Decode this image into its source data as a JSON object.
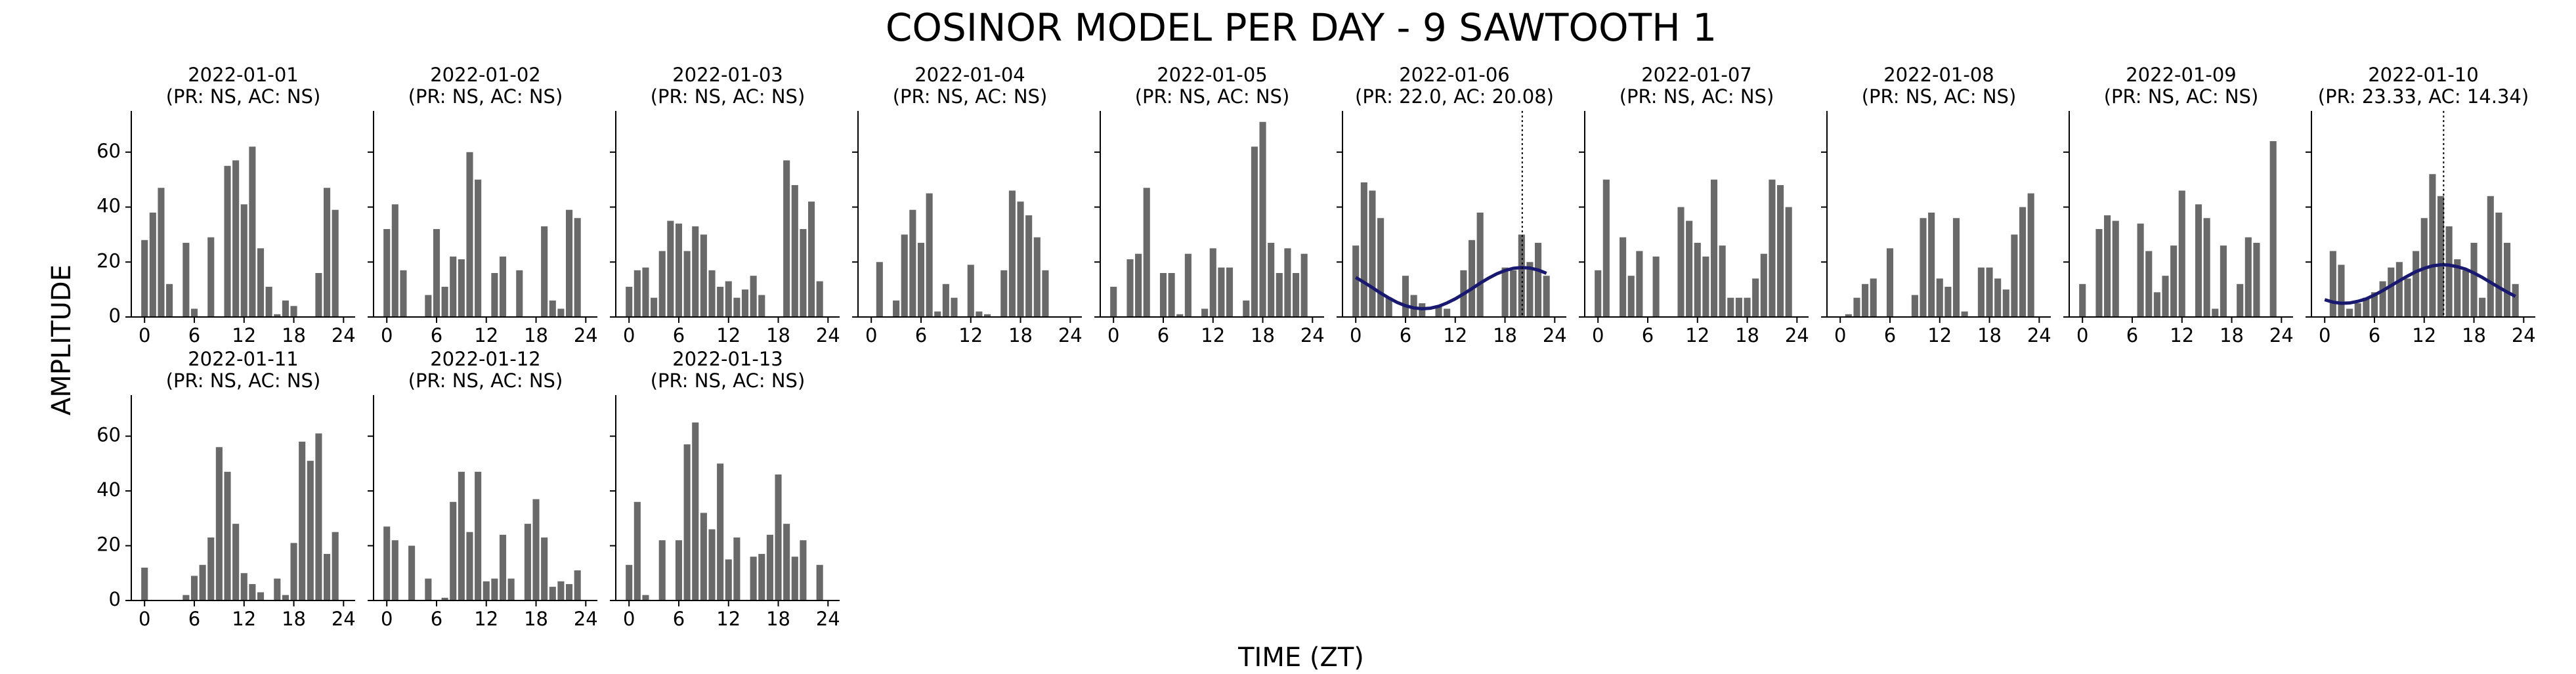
{
  "title": "COSINOR MODEL PER DAY - 9 SAWTOOTH 1",
  "xlabel": "TIME (ZT)",
  "ylabel": "AMPLITUDE",
  "chart_data": [
    {
      "type": "bar",
      "title": "2022-01-01",
      "subtitle": "(PR: NS, AC: NS)",
      "x": [
        0,
        1,
        2,
        3,
        4,
        5,
        6,
        7,
        8,
        9,
        10,
        11,
        12,
        13,
        14,
        15,
        16,
        17,
        18,
        19,
        20,
        21,
        22,
        23
      ],
      "values": [
        28,
        38,
        47,
        12,
        0,
        27,
        3,
        0,
        29,
        0,
        55,
        57,
        41,
        62,
        25,
        11,
        1,
        6,
        4,
        0,
        0,
        16,
        47,
        39
      ],
      "color": "#696969",
      "xlim": [
        -1.6,
        25.4
      ],
      "ylim": [
        0,
        75
      ],
      "xticks": [
        0,
        6,
        12,
        18,
        24
      ],
      "yticks": [
        0,
        20,
        40,
        60
      ]
    },
    {
      "type": "bar",
      "title": "2022-01-02",
      "subtitle": "(PR: NS, AC: NS)",
      "x": [
        0,
        1,
        2,
        3,
        4,
        5,
        6,
        7,
        8,
        9,
        10,
        11,
        12,
        13,
        14,
        15,
        16,
        17,
        18,
        19,
        20,
        21,
        22,
        23
      ],
      "values": [
        32,
        41,
        17,
        0,
        0,
        8,
        32,
        11,
        22,
        21,
        60,
        50,
        0,
        16,
        22,
        0,
        17,
        0,
        0,
        33,
        6,
        3,
        39,
        36
      ],
      "color": "#696969",
      "xlim": [
        -1.6,
        25.4
      ],
      "ylim": [
        0,
        75
      ],
      "xticks": [
        0,
        6,
        12,
        18,
        24
      ],
      "yticks": [
        0,
        20,
        40,
        60
      ]
    },
    {
      "type": "bar",
      "title": "2022-01-03",
      "subtitle": "(PR: NS, AC: NS)",
      "x": [
        0,
        1,
        2,
        3,
        4,
        5,
        6,
        7,
        8,
        9,
        10,
        11,
        12,
        13,
        14,
        15,
        16,
        17,
        18,
        19,
        20,
        21,
        22,
        23
      ],
      "values": [
        11,
        17,
        18,
        7,
        24,
        35,
        34,
        24,
        33,
        30,
        17,
        11,
        13,
        7,
        10,
        15,
        8,
        0,
        0,
        57,
        48,
        32,
        42,
        13
      ],
      "color": "#696969",
      "xlim": [
        -1.6,
        25.4
      ],
      "ylim": [
        0,
        75
      ],
      "xticks": [
        0,
        6,
        12,
        18,
        24
      ],
      "yticks": [
        0,
        20,
        40,
        60
      ]
    },
    {
      "type": "bar",
      "title": "2022-01-04",
      "subtitle": "(PR: NS, AC: NS)",
      "x": [
        0,
        1,
        2,
        3,
        4,
        5,
        6,
        7,
        8,
        9,
        10,
        11,
        12,
        13,
        14,
        15,
        16,
        17,
        18,
        19,
        20,
        21,
        22,
        23
      ],
      "values": [
        0,
        20,
        0,
        6,
        30,
        39,
        27,
        45,
        2,
        12,
        7,
        0,
        19,
        2,
        1,
        0,
        17,
        46,
        42,
        37,
        29,
        17,
        0,
        0
      ],
      "color": "#696969",
      "xlim": [
        -1.6,
        25.4
      ],
      "ylim": [
        0,
        75
      ],
      "xticks": [
        0,
        6,
        12,
        18,
        24
      ],
      "yticks": [
        0,
        20,
        40,
        60
      ]
    },
    {
      "type": "bar",
      "title": "2022-01-05",
      "subtitle": "(PR: NS, AC: NS)",
      "x": [
        0,
        1,
        2,
        3,
        4,
        5,
        6,
        7,
        8,
        9,
        10,
        11,
        12,
        13,
        14,
        15,
        16,
        17,
        18,
        19,
        20,
        21,
        22,
        23
      ],
      "values": [
        11,
        0,
        21,
        23,
        47,
        0,
        16,
        16,
        1,
        23,
        0,
        3,
        25,
        18,
        18,
        0,
        6,
        62,
        71,
        27,
        16,
        25,
        16,
        23
      ],
      "color": "#696969",
      "xlim": [
        -1.6,
        25.4
      ],
      "ylim": [
        0,
        75
      ],
      "xticks": [
        0,
        6,
        12,
        18,
        24
      ],
      "yticks": [
        0,
        20,
        40,
        60
      ]
    },
    {
      "type": "bar",
      "title": "2022-01-06",
      "subtitle": "(PR: 22.0, AC: 20.08)",
      "x": [
        0,
        1,
        2,
        3,
        4,
        5,
        6,
        7,
        8,
        9,
        10,
        11,
        12,
        13,
        14,
        15,
        16,
        17,
        18,
        19,
        20,
        21,
        22,
        23
      ],
      "values": [
        26,
        49,
        46,
        36,
        7,
        0,
        15,
        8,
        5,
        0,
        4,
        3,
        0,
        17,
        28,
        38,
        0,
        0,
        18,
        17,
        30,
        20,
        27,
        15
      ],
      "color": "#696969",
      "xlim": [
        -1.6,
        25.4
      ],
      "ylim": [
        0,
        75
      ],
      "xticks": [
        0,
        6,
        12,
        18,
        24
      ],
      "yticks": [
        0,
        20,
        40,
        60
      ],
      "acrophase": 20.08,
      "fit": {
        "color": "#191970",
        "x": [
          0,
          1,
          2,
          3,
          4,
          5,
          6,
          7,
          8,
          9,
          10,
          11,
          12,
          13,
          14,
          15,
          16,
          17,
          18,
          19,
          20,
          21,
          22,
          23
        ],
        "values": [
          14.4,
          12.6,
          10.7,
          8.7,
          6.9,
          5.3,
          4.1,
          3.3,
          3.0,
          3.2,
          3.9,
          5.1,
          6.6,
          8.4,
          10.3,
          12.3,
          14.1,
          15.7,
          16.9,
          17.7,
          18.0,
          17.8,
          17.1,
          15.9
        ]
      }
    },
    {
      "type": "bar",
      "title": "2022-01-07",
      "subtitle": "(PR: NS, AC: NS)",
      "x": [
        0,
        1,
        2,
        3,
        4,
        5,
        6,
        7,
        8,
        9,
        10,
        11,
        12,
        13,
        14,
        15,
        16,
        17,
        18,
        19,
        20,
        21,
        22,
        23
      ],
      "values": [
        17,
        50,
        0,
        29,
        15,
        24,
        0,
        22,
        0,
        0,
        40,
        35,
        27,
        22,
        50,
        26,
        7,
        7,
        7,
        14,
        23,
        50,
        48,
        40
      ],
      "color": "#696969",
      "xlim": [
        -1.6,
        25.4
      ],
      "ylim": [
        0,
        75
      ],
      "xticks": [
        0,
        6,
        12,
        18,
        24
      ],
      "yticks": [
        0,
        20,
        40,
        60
      ]
    },
    {
      "type": "bar",
      "title": "2022-01-08",
      "subtitle": "(PR: NS, AC: NS)",
      "x": [
        0,
        1,
        2,
        3,
        4,
        5,
        6,
        7,
        8,
        9,
        10,
        11,
        12,
        13,
        14,
        15,
        16,
        17,
        18,
        19,
        20,
        21,
        22,
        23
      ],
      "values": [
        0,
        1,
        7,
        12,
        14,
        0,
        25,
        0,
        0,
        8,
        36,
        38,
        14,
        11,
        36,
        2,
        0,
        18,
        18,
        14,
        10,
        30,
        40,
        45
      ],
      "color": "#696969",
      "xlim": [
        -1.6,
        25.4
      ],
      "ylim": [
        0,
        75
      ],
      "xticks": [
        0,
        6,
        12,
        18,
        24
      ],
      "yticks": [
        0,
        20,
        40,
        60
      ]
    },
    {
      "type": "bar",
      "title": "2022-01-09",
      "subtitle": "(PR: NS, AC: NS)",
      "x": [
        0,
        1,
        2,
        3,
        4,
        5,
        6,
        7,
        8,
        9,
        10,
        11,
        12,
        13,
        14,
        15,
        16,
        17,
        18,
        19,
        20,
        21,
        22,
        23
      ],
      "values": [
        12,
        0,
        32,
        37,
        35,
        0,
        0,
        34,
        24,
        9,
        15,
        26,
        46,
        0,
        41,
        36,
        3,
        26,
        0,
        12,
        29,
        27,
        0,
        64
      ],
      "color": "#696969",
      "xlim": [
        -1.6,
        25.4
      ],
      "ylim": [
        0,
        75
      ],
      "xticks": [
        0,
        6,
        12,
        18,
        24
      ],
      "yticks": [
        0,
        20,
        40,
        60
      ]
    },
    {
      "type": "bar",
      "title": "2022-01-10",
      "subtitle": "(PR: 23.33, AC: 14.34)",
      "x": [
        0,
        1,
        2,
        3,
        4,
        5,
        6,
        7,
        8,
        9,
        10,
        11,
        12,
        13,
        14,
        15,
        16,
        17,
        18,
        19,
        20,
        21,
        22,
        23
      ],
      "values": [
        0,
        24,
        19,
        3,
        5,
        7,
        9,
        13,
        18,
        20,
        14,
        24,
        36,
        52,
        44,
        33,
        21,
        17,
        27,
        7,
        44,
        38,
        27,
        12
      ],
      "color": "#696969",
      "xlim": [
        -1.6,
        25.4
      ],
      "ylim": [
        0,
        75
      ],
      "xticks": [
        0,
        6,
        12,
        18,
        24
      ],
      "yticks": [
        0,
        20,
        40,
        60
      ],
      "acrophase": 14.34,
      "fit": {
        "color": "#191970",
        "x": [
          0,
          1,
          2,
          3,
          4,
          5,
          6,
          7,
          8,
          9,
          10,
          11,
          12,
          13,
          14,
          15,
          16,
          17,
          18,
          19,
          20,
          21,
          22,
          23
        ],
        "values": [
          6.3,
          5.4,
          5.0,
          5.1,
          5.7,
          6.6,
          8.0,
          9.6,
          11.4,
          13.2,
          14.9,
          16.5,
          17.7,
          18.6,
          19.0,
          18.9,
          18.3,
          17.4,
          16.0,
          14.4,
          12.6,
          10.8,
          9.1,
          7.5
        ]
      }
    },
    {
      "type": "bar",
      "title": "2022-01-11",
      "subtitle": "(PR: NS, AC: NS)",
      "x": [
        0,
        1,
        2,
        3,
        4,
        5,
        6,
        7,
        8,
        9,
        10,
        11,
        12,
        13,
        14,
        15,
        16,
        17,
        18,
        19,
        20,
        21,
        22,
        23
      ],
      "values": [
        12,
        0,
        0,
        0,
        0,
        2,
        9,
        13,
        23,
        56,
        47,
        28,
        10,
        6,
        3,
        0,
        8,
        2,
        21,
        58,
        51,
        61,
        17,
        25
      ],
      "color": "#696969",
      "xlim": [
        -1.6,
        25.4
      ],
      "ylim": [
        0,
        75
      ],
      "xticks": [
        0,
        6,
        12,
        18,
        24
      ],
      "yticks": [
        0,
        20,
        40,
        60
      ]
    },
    {
      "type": "bar",
      "title": "2022-01-12",
      "subtitle": "(PR: NS, AC: NS)",
      "x": [
        0,
        1,
        2,
        3,
        4,
        5,
        6,
        7,
        8,
        9,
        10,
        11,
        12,
        13,
        14,
        15,
        16,
        17,
        18,
        19,
        20,
        21,
        22,
        23
      ],
      "values": [
        27,
        22,
        0,
        20,
        0,
        8,
        0,
        1,
        36,
        47,
        25,
        47,
        7,
        8,
        24,
        8,
        0,
        28,
        37,
        23,
        5,
        7,
        6,
        11
      ],
      "color": "#696969",
      "xlim": [
        -1.6,
        25.4
      ],
      "ylim": [
        0,
        75
      ],
      "xticks": [
        0,
        6,
        12,
        18,
        24
      ],
      "yticks": [
        0,
        20,
        40,
        60
      ]
    },
    {
      "type": "bar",
      "title": "2022-01-13",
      "subtitle": "(PR: NS, AC: NS)",
      "x": [
        0,
        1,
        2,
        3,
        4,
        5,
        6,
        7,
        8,
        9,
        10,
        11,
        12,
        13,
        14,
        15,
        16,
        17,
        18,
        19,
        20,
        21,
        22,
        23
      ],
      "values": [
        13,
        36,
        2,
        0,
        22,
        0,
        22,
        57,
        65,
        32,
        26,
        50,
        15,
        23,
        0,
        16,
        17,
        24,
        46,
        28,
        16,
        22,
        0,
        13
      ],
      "color": "#696969",
      "xlim": [
        -1.6,
        25.4
      ],
      "ylim": [
        0,
        75
      ],
      "xticks": [
        0,
        6,
        12,
        18,
        24
      ],
      "yticks": [
        0,
        20,
        40,
        60
      ]
    }
  ]
}
